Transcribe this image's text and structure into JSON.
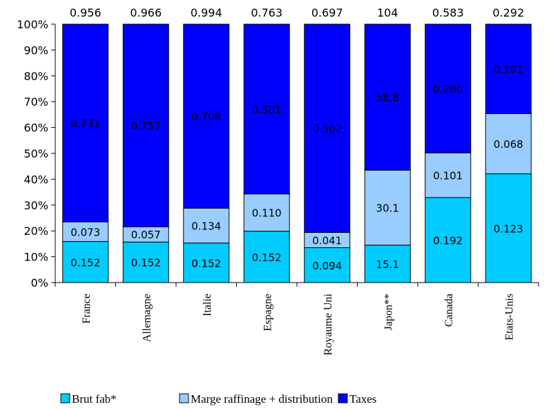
{
  "chart_data": {
    "type": "bar",
    "stacked": true,
    "normalized": true,
    "categories": [
      "France",
      "Allemagne",
      "Italie",
      "Espagne",
      "Royaume Uni",
      "Japon**",
      "Canada",
      "Etats-Unis"
    ],
    "totals": [
      "0.956",
      "0.966",
      "0.994",
      "0.763",
      "0.697",
      "104",
      "0.583",
      "0.292"
    ],
    "series": [
      {
        "name": "Brut fab*",
        "color": "#00ccff",
        "labels": [
          "0.152",
          "0.152",
          "0.152",
          "0.152",
          "0.094",
          "15.1",
          "0.192",
          "0.123"
        ],
        "percent": [
          15.9,
          15.7,
          15.3,
          19.9,
          13.5,
          14.5,
          32.9,
          42.1
        ]
      },
      {
        "name": "Marge raffinage + distribution",
        "color": "#99ccff",
        "labels": [
          "0.073",
          "0.057",
          "0.134",
          "0.110",
          "0.041",
          "30.1",
          "0.101",
          "0.068"
        ],
        "percent": [
          7.6,
          5.9,
          13.5,
          14.4,
          5.9,
          29.0,
          17.3,
          23.3
        ]
      },
      {
        "name": "Taxes",
        "color": "#0000ff",
        "labels": [
          "0.731",
          "0.757",
          "0.708",
          "0.501",
          "0.562",
          "58.8",
          "0.290",
          "0.101"
        ],
        "percent": [
          76.5,
          78.4,
          71.2,
          65.7,
          80.6,
          56.5,
          49.8,
          34.6
        ]
      }
    ],
    "y_ticks": [
      "0%",
      "10%",
      "20%",
      "30%",
      "40%",
      "50%",
      "60%",
      "70%",
      "80%",
      "90%",
      "100%"
    ],
    "ylim": [
      0,
      100
    ],
    "grid": false,
    "legend": "bottom"
  }
}
